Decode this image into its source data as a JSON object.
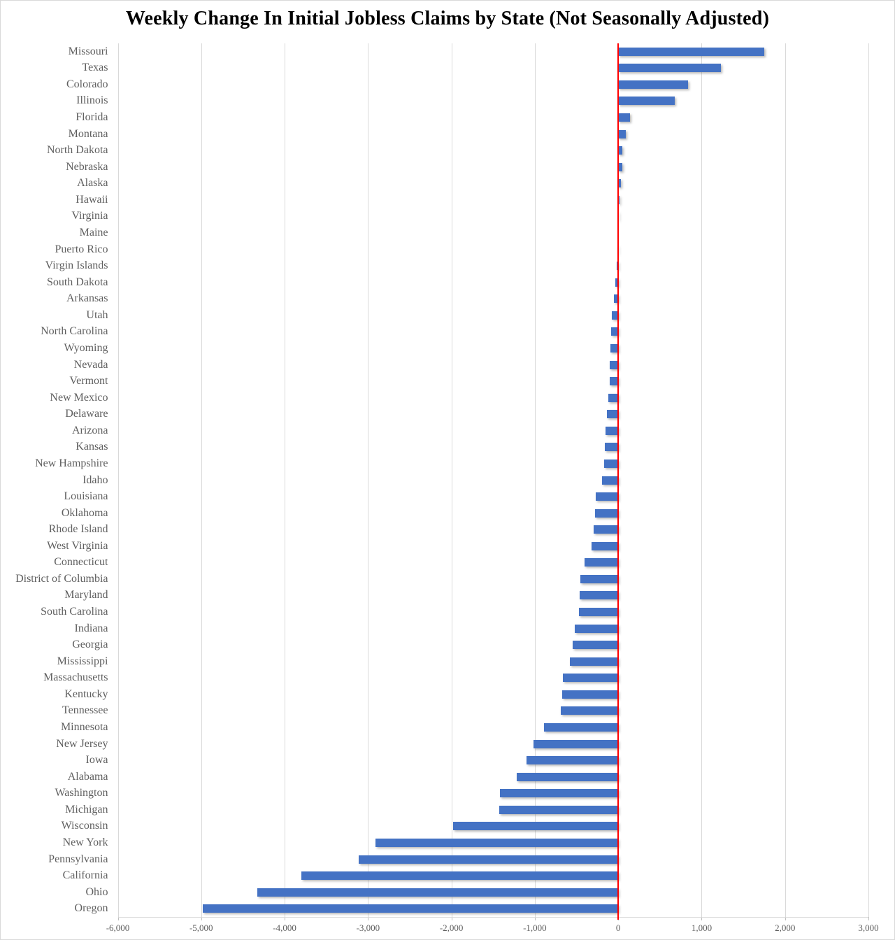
{
  "title": "Weekly Change In Initial Jobless Claims by State (Not Seasonally Adjusted)",
  "chart_data": {
    "type": "bar",
    "orientation": "horizontal",
    "title": "Weekly Change In Initial Jobless Claims by State (Not Seasonally Adjusted)",
    "xlabel": "",
    "ylabel": "",
    "grid": true,
    "legend": false,
    "zero_marker": "vertical red line at 0",
    "xlim": [
      -6000,
      3000
    ],
    "x_tick_step": 1000,
    "x_tick_labels": [
      "-6,000",
      "-5,000",
      "-4,000",
      "-3,000",
      "-2,000",
      "-1,000",
      "0",
      "1,000",
      "2,000",
      "3,000"
    ],
    "categories": [
      "Missouri",
      "Texas",
      "Colorado",
      "Illinois",
      "Florida",
      "Montana",
      "North Dakota",
      "Nebraska",
      "Alaska",
      "Hawaii",
      "Virginia",
      "Maine",
      "Puerto Rico",
      "Virgin Islands",
      "South Dakota",
      "Arkansas",
      "Utah",
      "North Carolina",
      "Wyoming",
      "Nevada",
      "Vermont",
      "New Mexico",
      "Delaware",
      "Arizona",
      "Kansas",
      "New Hampshire",
      "Idaho",
      "Louisiana",
      "Oklahoma",
      "Rhode Island",
      "West Virginia",
      "Connecticut",
      "District of Columbia",
      "Maryland",
      "South Carolina",
      "Indiana",
      "Georgia",
      "Mississippi",
      "Massachusetts",
      "Kentucky",
      "Tennessee",
      "Minnesota",
      "New Jersey",
      "Iowa",
      "Alabama",
      "Washington",
      "Michigan",
      "Wisconsin",
      "New York",
      "Pennsylvania",
      "California",
      "Ohio",
      "Oregon"
    ],
    "values": [
      1750,
      1230,
      840,
      680,
      145,
      90,
      50,
      45,
      30,
      15,
      5,
      0,
      -10,
      -20,
      -35,
      -50,
      -75,
      -85,
      -95,
      -100,
      -105,
      -120,
      -135,
      -150,
      -160,
      -165,
      -195,
      -270,
      -280,
      -295,
      -320,
      -400,
      -455,
      -460,
      -470,
      -520,
      -545,
      -580,
      -660,
      -670,
      -685,
      -890,
      -1020,
      -1100,
      -1220,
      -1420,
      -1430,
      -1980,
      -2910,
      -3110,
      -3800,
      -4330,
      -4985
    ],
    "colors": {
      "bar": "#4472C4",
      "zero_line": "#FF0000",
      "gridline": "#D9D9D9",
      "labels": "#5F5F5F",
      "title": "#000000",
      "background": "#FFFFFF"
    }
  }
}
